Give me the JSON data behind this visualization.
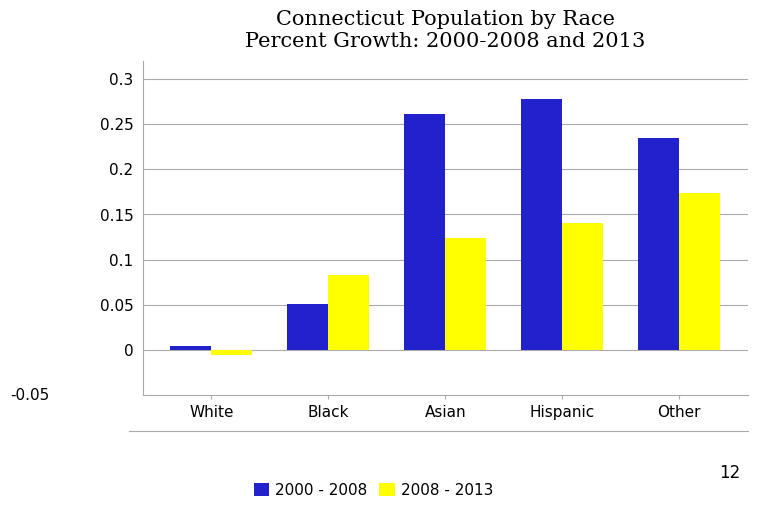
{
  "title": "Connecticut Population by Race\nPercent Growth: 2000-2008 and 2013",
  "categories": [
    "White",
    "Black",
    "Asian",
    "Hispanic",
    "Other"
  ],
  "series_2000_2008": [
    0.005,
    0.051,
    0.261,
    0.278,
    0.235
  ],
  "series_2008_2013": [
    -0.005,
    0.083,
    0.124,
    0.141,
    0.174
  ],
  "color_2000_2008": "#2222cc",
  "color_2008_2013": "#ffff00",
  "ylim": [
    -0.05,
    0.32
  ],
  "yticks": [
    0.0,
    0.05,
    0.1,
    0.15,
    0.2,
    0.25,
    0.3
  ],
  "ytick_labels": [
    "0",
    "0.05",
    "0.1",
    "0.15",
    "0.2",
    "0.25",
    "0.3"
  ],
  "legend_labels": [
    "2000 - 2008",
    "2008 - 2013"
  ],
  "bar_width": 0.35,
  "title_fontsize": 15,
  "tick_fontsize": 11,
  "legend_fontsize": 11,
  "footnote": "12",
  "background_color": "#ffffff",
  "grid_color": "#aaaaaa",
  "left_label": "-0.05"
}
